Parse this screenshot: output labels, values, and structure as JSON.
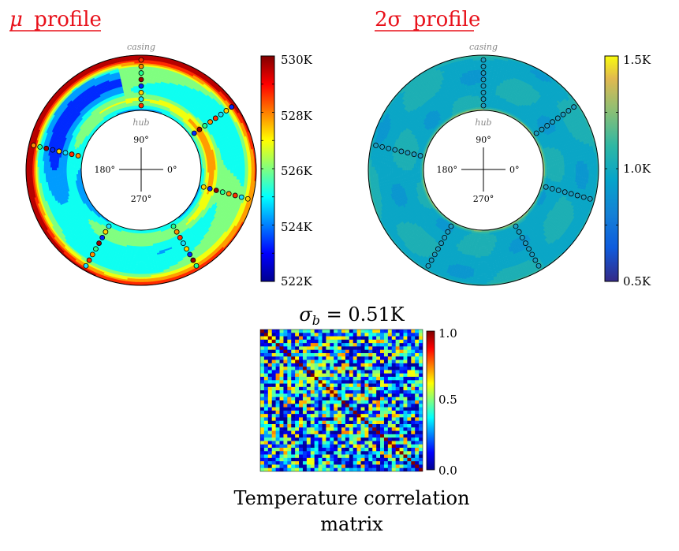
{
  "chart_data": [
    {
      "type": "heatmap",
      "name": "mu",
      "title_symbol": "μ",
      "title_text": "profile",
      "ring_outer_label": "casing",
      "ring_inner_label": "hub",
      "angle_labels": [
        "90°",
        "180°",
        "0°",
        "270°"
      ],
      "colorbar": {
        "range": [
          522,
          530
        ],
        "ticks": [
          "530K",
          "528K",
          "526K",
          "524K",
          "522K"
        ],
        "colormap": "jet"
      }
    },
    {
      "type": "heatmap",
      "name": "two_sigma",
      "title_symbol": "2σ",
      "title_text": "profile",
      "ring_outer_label": "casing",
      "ring_inner_label": "hub",
      "angle_labels": [
        "90°",
        "180°",
        "0°",
        "270°"
      ],
      "colorbar": {
        "range": [
          0.5,
          1.5
        ],
        "ticks": [
          "1.5K",
          "1.0K",
          "0.5K"
        ],
        "colormap": "parula"
      }
    },
    {
      "type": "heatmap",
      "name": "correlation",
      "title": "σ_b = 0.51K",
      "title_symbol": "σ",
      "title_sub": "b",
      "title_value": " = 0.51K",
      "caption_lines": [
        "Temperature correlation",
        "matrix"
      ],
      "size": 42,
      "colorbar": {
        "range": [
          0,
          1
        ],
        "ticks": [
          "1.0",
          "0.5",
          "0.0"
        ],
        "colormap": "jet"
      }
    }
  ]
}
